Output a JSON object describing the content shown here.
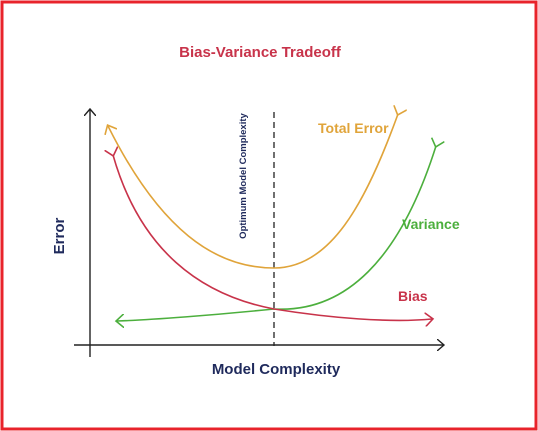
{
  "title": "Bias-Variance Tradeoff",
  "axes": {
    "x_label": "Model Complexity",
    "y_label": "Error"
  },
  "optimum_label": "Optimum Model Complexity",
  "curves": {
    "total_error": {
      "label": "Total Error",
      "color": "#e0a43a"
    },
    "variance": {
      "label": "Variance",
      "color": "#4caf3d"
    },
    "bias": {
      "label": "Bias",
      "color": "#c8334a"
    }
  },
  "colors": {
    "border": "#e8232b",
    "title": "#c8334a",
    "axis_label": "#1f2a5c",
    "axis_line": "#222222"
  }
}
